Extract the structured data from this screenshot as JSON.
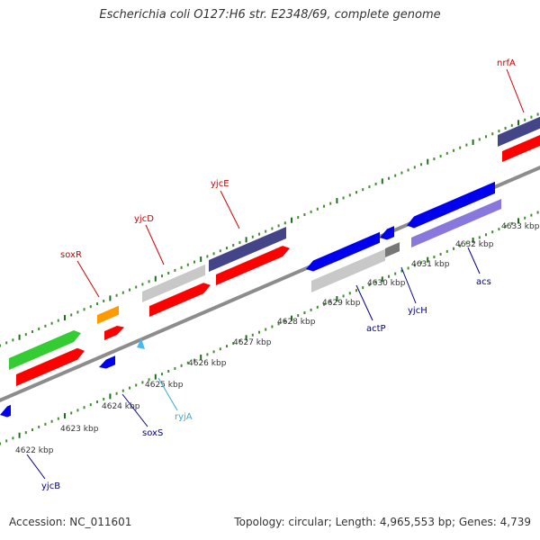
{
  "title": "Escherichia coli O127:H6 str. E2348/69, complete genome",
  "footer": {
    "accession": "Accession: NC_011601",
    "summary": "Topology: circular; Length: 4,965,553 bp; Genes: 4,739"
  },
  "colors": {
    "axis": "#8c8c8c",
    "tick_minor": "#3f8f2f",
    "tick_major": "#1f6e1a",
    "label_top": "#cc0000",
    "label_bottom": "#00008b",
    "label_rna": "#33aadd",
    "cds": "#ff0000",
    "gene_green": "#33cc33",
    "gene_orange": "#ff9900",
    "gene_grey": "#c8c8c8",
    "gene_blue": "#0000ee",
    "gene_navy": "#444488",
    "gene_purple": "#8877dd",
    "rna": "#44bbee"
  },
  "kbp_ticks": [
    "4622 kbp",
    "4623 kbp",
    "4624 kbp",
    "4625 kbp",
    "4626 kbp",
    "4627 kbp",
    "4628 kbp",
    "4629 kbp",
    "4630 kbp",
    "4631 kbp",
    "4632 kbp",
    "4633 kbp"
  ],
  "gene_labels_top": [
    "soxR",
    "yjcD",
    "yjcE",
    "nrfA"
  ],
  "gene_labels_bottom": [
    "yjcB",
    "soxS",
    "ryjA",
    "actP",
    "yjcH",
    "acs"
  ]
}
